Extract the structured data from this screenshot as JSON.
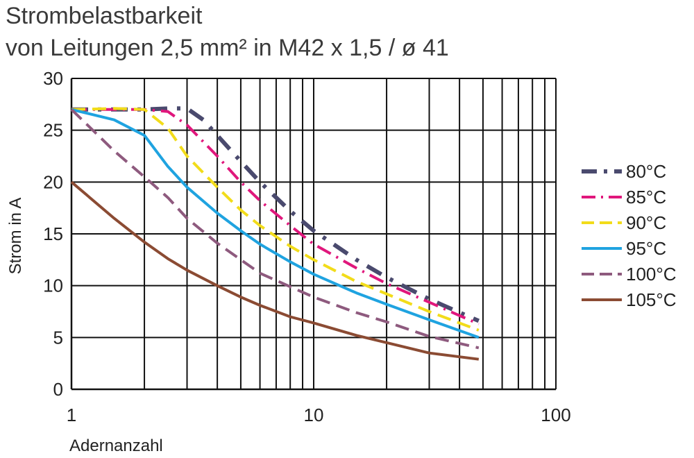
{
  "chart_data": {
    "type": "line",
    "title": "Strombelastbarkeit",
    "subtitle": "von Leitungen 2,5 mm² in M42 x 1,5 / ø 41",
    "xlabel": "Adernanzahl",
    "ylabel": "Strom in A",
    "xscale": "log",
    "xlim": [
      1,
      100
    ],
    "ylim": [
      0,
      30
    ],
    "xticks": [
      1,
      10,
      100
    ],
    "xtick_labels": [
      "1",
      "10",
      "100"
    ],
    "yticks": [
      0,
      5,
      10,
      15,
      20,
      25,
      30
    ],
    "ytick_labels": [
      "0",
      "5",
      "10",
      "15",
      "20",
      "25",
      "30"
    ],
    "grid": true,
    "legend_position": "right",
    "series": [
      {
        "name": "80°C",
        "color": "#4a4a6e",
        "dash": "dashdot-heavy",
        "x": [
          1,
          1.5,
          2,
          2.5,
          3,
          3.5,
          4,
          5,
          6,
          8,
          10,
          15,
          20,
          30,
          48
        ],
        "y": [
          27,
          27,
          27,
          27.1,
          27.1,
          26,
          24.5,
          22,
          20,
          17.2,
          15.3,
          12.5,
          10.8,
          8.7,
          6.6
        ]
      },
      {
        "name": "85°C",
        "color": "#e0177c",
        "dash": "dashdot",
        "x": [
          1,
          1.5,
          2,
          2.5,
          3,
          4,
          5,
          6,
          8,
          10,
          15,
          20,
          30,
          48
        ],
        "y": [
          27,
          27,
          27,
          26.8,
          25.5,
          22.5,
          20,
          18.2,
          15.8,
          14,
          11.7,
          10.2,
          8.4,
          6.3
        ]
      },
      {
        "name": "90°C",
        "color": "#f2dc1a",
        "dash": "dash",
        "x": [
          1,
          1.5,
          2,
          2.5,
          3,
          4,
          5,
          6,
          8,
          10,
          15,
          20,
          30,
          48
        ],
        "y": [
          27,
          27.1,
          27,
          25.2,
          22.5,
          19.5,
          17.3,
          15.8,
          13.8,
          12.5,
          10.4,
          9.2,
          7.5,
          5.7
        ]
      },
      {
        "name": "95°C",
        "color": "#1fa3e0",
        "dash": "solid",
        "x": [
          1,
          1.5,
          2,
          2.5,
          3,
          4,
          5,
          6,
          8,
          10,
          15,
          20,
          30,
          48
        ],
        "y": [
          27,
          26,
          24.5,
          21.5,
          19.5,
          17,
          15.3,
          14,
          12.3,
          11.1,
          9.3,
          8.2,
          6.7,
          5
        ]
      },
      {
        "name": "100°C",
        "color": "#8e5a7e",
        "dash": "dash",
        "x": [
          1,
          1.5,
          2,
          2.5,
          3,
          4,
          5,
          6,
          8,
          10,
          15,
          20,
          30,
          48
        ],
        "y": [
          27,
          23,
          20.5,
          18.5,
          16.5,
          14.1,
          12.5,
          11.2,
          9.9,
          8.9,
          7.4,
          6.5,
          5.1,
          4
        ]
      },
      {
        "name": "105°C",
        "color": "#8b4b33",
        "dash": "solid",
        "x": [
          1,
          1.5,
          2,
          2.5,
          3,
          4,
          5,
          6,
          8,
          10,
          15,
          20,
          30,
          48
        ],
        "y": [
          20,
          16.5,
          14.2,
          12.6,
          11.5,
          10,
          8.9,
          8.1,
          7,
          6.4,
          5.2,
          4.5,
          3.5,
          2.9
        ]
      }
    ]
  }
}
